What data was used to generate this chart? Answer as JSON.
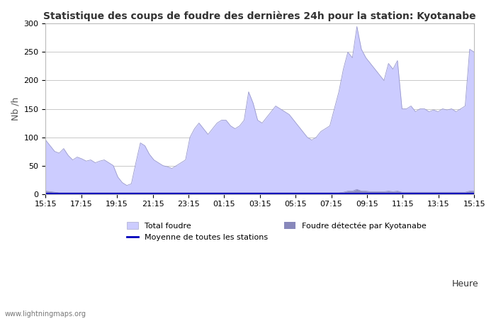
{
  "title": "Statistique des coups de foudre des dernières 24h pour la station: Kyotanabe",
  "xlabel": "Heure",
  "ylabel": "Nb /h",
  "ylim": [
    0,
    300
  ],
  "yticks": [
    0,
    50,
    100,
    150,
    200,
    250,
    300
  ],
  "xtick_labels": [
    "15:15",
    "17:15",
    "19:15",
    "21:15",
    "23:15",
    "01:15",
    "03:15",
    "05:15",
    "07:15",
    "09:15",
    "11:15",
    "13:15",
    "15:15"
  ],
  "background_color": "#ffffff",
  "plot_background": "#ffffff",
  "grid_color": "#c8c8c8",
  "total_foudre_color": "#ccccff",
  "total_foudre_edge": "#9999cc",
  "kyotanabe_color": "#8888bb",
  "moyenne_color": "#0000bb",
  "watermark": "www.lightningmaps.org",
  "legend_total": "Total foudre",
  "legend_moyenne": "Moyenne de toutes les stations",
  "legend_kyotanabe": "Foudre détectée par Kyotanabe",
  "total_foudre": [
    95,
    85,
    75,
    72,
    80,
    68,
    60,
    65,
    62,
    58,
    60,
    55,
    58,
    60,
    55,
    50,
    30,
    20,
    15,
    18,
    55,
    90,
    85,
    70,
    60,
    55,
    50,
    48,
    45,
    50,
    55,
    60,
    100,
    115,
    125,
    115,
    105,
    115,
    125,
    130,
    130,
    120,
    115,
    120,
    130,
    180,
    160,
    130,
    125,
    135,
    145,
    155,
    150,
    145,
    140,
    130,
    120,
    110,
    100,
    95,
    100,
    110,
    115,
    120,
    150,
    180,
    220,
    250,
    240,
    295,
    255,
    240,
    230,
    220,
    210,
    200,
    230,
    220,
    235,
    150,
    150,
    155,
    145,
    150,
    150,
    145,
    148,
    145,
    150,
    148,
    150,
    145,
    150,
    155,
    255,
    250
  ],
  "kyotanabe_vals": [
    5,
    4,
    3,
    2,
    2,
    2,
    2,
    2,
    2,
    2,
    2,
    2,
    2,
    2,
    2,
    2,
    2,
    2,
    2,
    2,
    2,
    2,
    2,
    2,
    2,
    2,
    2,
    2,
    2,
    2,
    2,
    2,
    2,
    2,
    2,
    2,
    2,
    2,
    2,
    2,
    2,
    2,
    2,
    2,
    2,
    2,
    2,
    2,
    2,
    2,
    2,
    2,
    2,
    2,
    2,
    2,
    2,
    2,
    2,
    2,
    2,
    2,
    2,
    2,
    2,
    2,
    3,
    5,
    5,
    8,
    5,
    5,
    4,
    4,
    4,
    4,
    5,
    4,
    5,
    3,
    3,
    3,
    3,
    3,
    3,
    3,
    3,
    3,
    3,
    3,
    3,
    3,
    3,
    3,
    5,
    5
  ],
  "moyenne_vals": [
    1,
    1,
    1,
    1,
    1,
    1,
    1,
    1,
    1,
    1,
    1,
    1,
    1,
    1,
    1,
    1,
    1,
    1,
    1,
    1,
    1,
    1,
    1,
    1,
    1,
    1,
    1,
    1,
    1,
    1,
    1,
    1,
    1,
    1,
    1,
    1,
    1,
    1,
    1,
    1,
    1,
    1,
    1,
    1,
    1,
    1,
    1,
    1,
    1,
    1,
    1,
    1,
    1,
    1,
    1,
    1,
    1,
    1,
    1,
    1,
    1,
    1,
    1,
    1,
    1,
    1,
    1,
    1,
    1,
    1,
    1,
    1,
    1,
    1,
    1,
    1,
    1,
    1,
    1,
    1,
    1,
    1,
    1,
    1,
    1,
    1,
    1,
    1,
    1,
    1,
    1,
    1,
    1,
    1,
    1,
    1
  ]
}
